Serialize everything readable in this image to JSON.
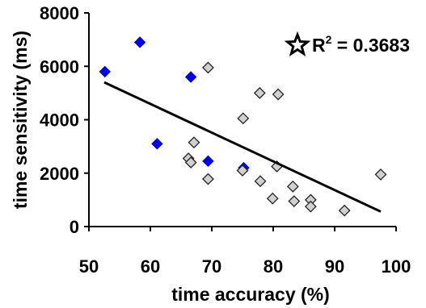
{
  "chart_data": {
    "type": "scatter",
    "xlabel": "time accuracy (%)",
    "ylabel": "time sensitivity (ms)",
    "xlim": [
      50,
      100
    ],
    "ylim": [
      0,
      8000
    ],
    "x_ticks": [
      "50",
      "60",
      "70",
      "80",
      "90",
      "100"
    ],
    "y_ticks": [
      "0",
      "2000",
      "4000",
      "6000",
      "8000"
    ],
    "grid": false,
    "annotation": {
      "prefix": "R",
      "superscript": "2",
      "suffix": " = 0.3683",
      "marker": "star"
    },
    "trendline": {
      "x": [
        52.5,
        97.5
      ],
      "y": [
        5400,
        560
      ]
    },
    "series": [
      {
        "marker": "diamond",
        "color": "#0000ee",
        "points": [
          [
            52.6,
            5800
          ],
          [
            58.3,
            6900
          ],
          [
            66.6,
            5600
          ],
          [
            61.1,
            3100
          ],
          [
            69.4,
            2450
          ],
          [
            75.2,
            2200
          ]
        ]
      },
      {
        "marker": "diamond",
        "color": "#d0d0d0",
        "points": [
          [
            69.4,
            5950
          ],
          [
            77.8,
            5000
          ],
          [
            80.8,
            4950
          ],
          [
            75.1,
            4050
          ],
          [
            67.1,
            3150
          ],
          [
            66.2,
            2550
          ],
          [
            66.6,
            2400
          ],
          [
            75.0,
            2100
          ],
          [
            80.6,
            2250
          ],
          [
            69.4,
            1780
          ],
          [
            77.9,
            1700
          ],
          [
            83.2,
            1500
          ],
          [
            97.5,
            1950
          ],
          [
            79.9,
            1050
          ],
          [
            83.4,
            950
          ],
          [
            86.1,
            1000
          ],
          [
            86.1,
            750
          ],
          [
            91.6,
            600
          ]
        ]
      }
    ]
  }
}
